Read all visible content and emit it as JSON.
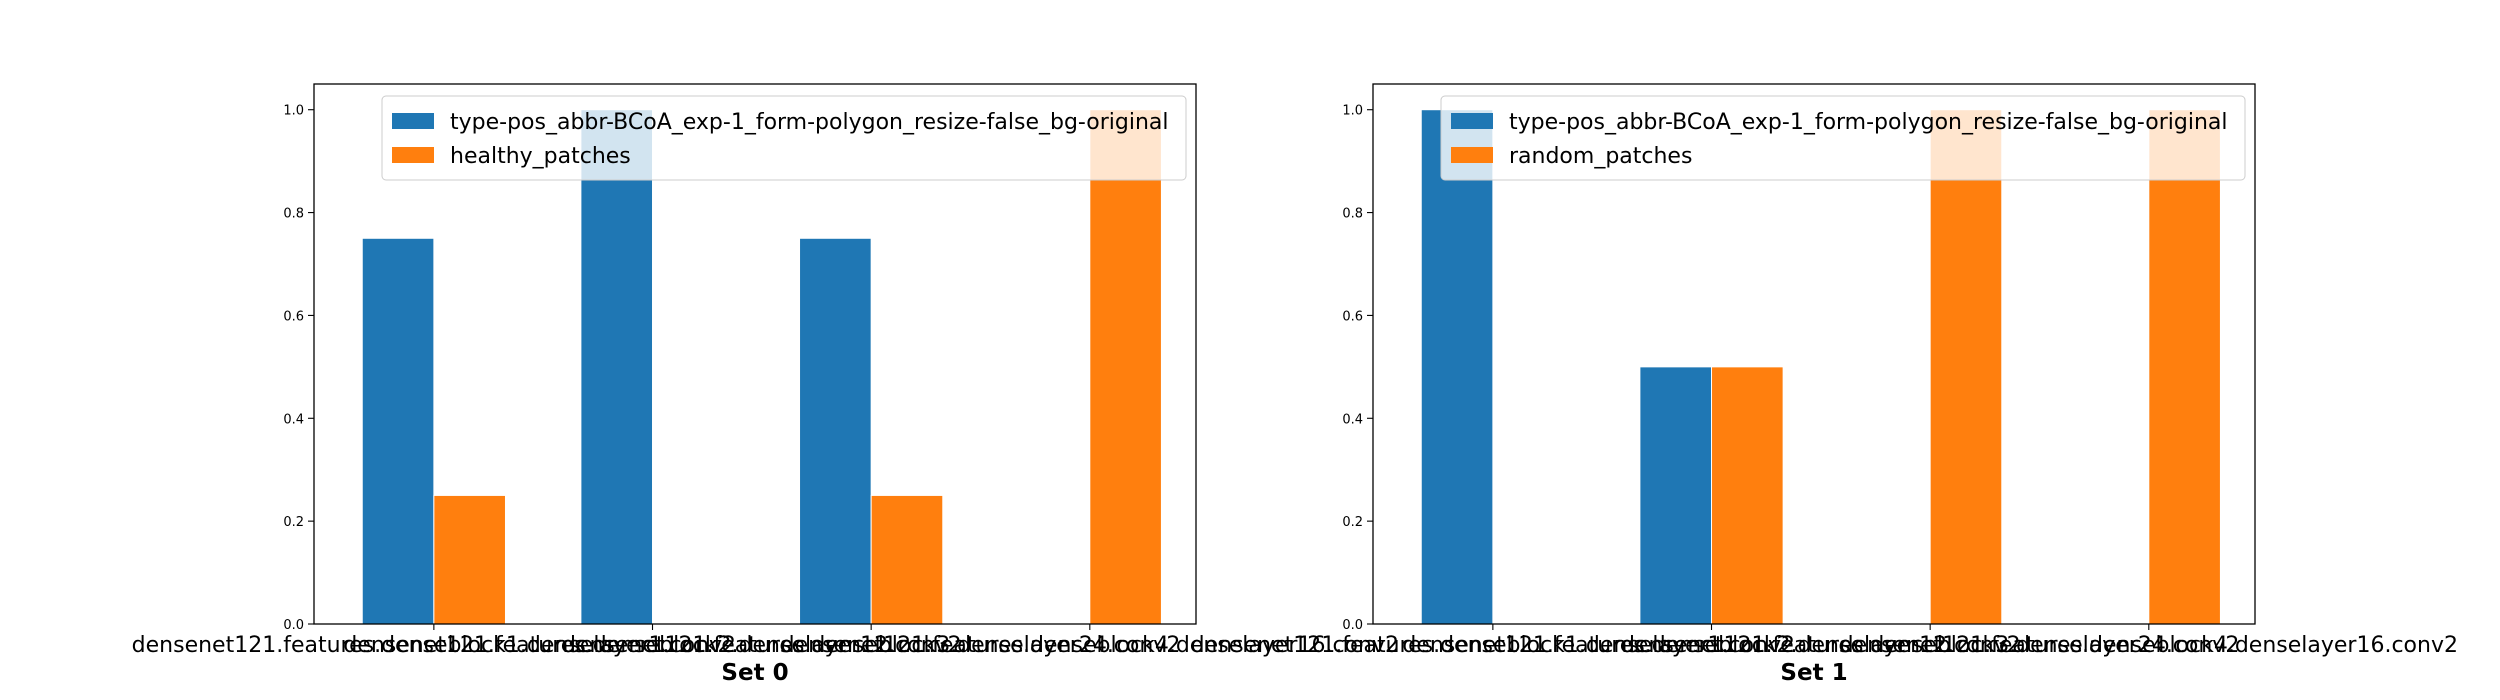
{
  "chart_data": [
    {
      "type": "bar",
      "xlabel": "Set 0",
      "ylabel": "",
      "ylim": [
        0,
        1.05
      ],
      "yticks": [
        "0.0",
        "0.2",
        "0.4",
        "0.6",
        "0.8",
        "1.0"
      ],
      "categories": [
        "densenet121.features.denseblock1.denselayer1.conv2",
        "densenet121.features.denseblock2.denselayer12.conv2",
        "densenet121.features.denseblock3.denselayer24.conv2",
        "densenet121.features.denseblock4.denselayer16.conv2"
      ],
      "series": [
        {
          "name": "type-pos_abbr-BCoA_exp-1_form-polygon_resize-false_bg-original",
          "color": "#1f77b4",
          "values": [
            0.75,
            1.0,
            0.75,
            0.0
          ]
        },
        {
          "name": "healthy_patches",
          "color": "#ff7f0e",
          "values": [
            0.25,
            0.0,
            0.25,
            1.0
          ]
        }
      ],
      "legend": "upper right",
      "grid": false
    },
    {
      "type": "bar",
      "xlabel": "Set 1",
      "ylabel": "",
      "ylim": [
        0,
        1.05
      ],
      "yticks": [
        "0.0",
        "0.2",
        "0.4",
        "0.6",
        "0.8",
        "1.0"
      ],
      "categories": [
        "densenet121.features.denseblock1.denselayer1.conv2",
        "densenet121.features.denseblock2.denselayer12.conv2",
        "densenet121.features.denseblock3.denselayer24.conv2",
        "densenet121.features.denseblock4.denselayer16.conv2"
      ],
      "series": [
        {
          "name": "type-pos_abbr-BCoA_exp-1_form-polygon_resize-false_bg-original",
          "color": "#1f77b4",
          "values": [
            1.0,
            0.5,
            0.0,
            0.0
          ]
        },
        {
          "name": "random_patches",
          "color": "#ff7f0e",
          "values": [
            0.0,
            0.5,
            1.0,
            1.0
          ]
        }
      ],
      "legend": "upper right",
      "grid": false
    }
  ]
}
